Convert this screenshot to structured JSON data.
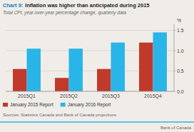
{
  "chart_data": {
    "type": "bar",
    "title": "Inflation was higher than anticipated during 2015",
    "subtitle": "Total CPI, year-over-year percentage change, quarterly data",
    "y_label": "%",
    "annotations": [
      "Chart 9:",
      "Sources: Statistics Canada and Bank of Canada projections",
      "Bank of Canada"
    ],
    "categories": [
      "2015Q1",
      "2015Q2",
      "2015Q3",
      "2015Q4"
    ],
    "series": [
      {
        "name": "January 2015 Report",
        "color": "#c0392b",
        "values": [
          0.55,
          0.33,
          0.55,
          1.2
        ]
      },
      {
        "name": "January 2016 Report",
        "color": "#29b5e8",
        "values": [
          1.05,
          1.05,
          1.2,
          1.45
        ]
      }
    ],
    "ylim": [
      0.0,
      1.65
    ],
    "yticks": [
      {
        "value": 0.0,
        "label": "0.0"
      },
      0.5,
      {
        "value": 1.0,
        "label": "1.0"
      },
      1.5
    ],
    "grid": true,
    "legend": "bottom"
  }
}
